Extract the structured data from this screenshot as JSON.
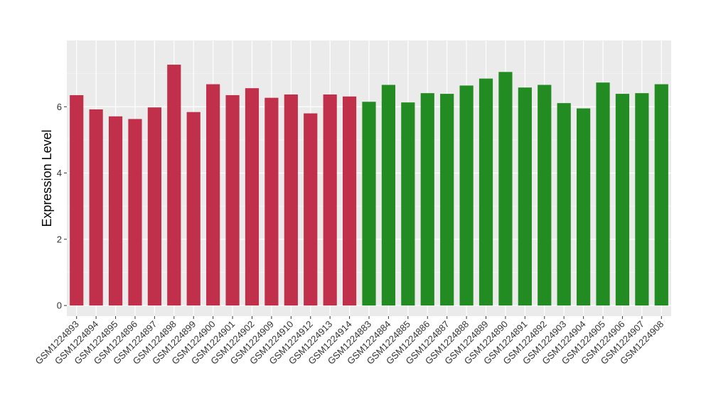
{
  "chart_data": {
    "type": "bar",
    "title": "",
    "xlabel": "",
    "ylabel": "Expression Level",
    "ylim": [
      -0.32,
      8.0
    ],
    "yticks": [
      0,
      2,
      4,
      6
    ],
    "grid": true,
    "legend": "none",
    "panel_background": "#ebebeb",
    "grid_color": "#ffffff",
    "categories": [
      "GSM1224893",
      "GSM1224894",
      "GSM1224895",
      "GSM1224896",
      "GSM1224897",
      "GSM1224898",
      "GSM1224899",
      "GSM1224900",
      "GSM1224901",
      "GSM1224902",
      "GSM1224909",
      "GSM1224910",
      "GSM1224912",
      "GSM1224913",
      "GSM1224914",
      "GSM1224883",
      "GSM1224884",
      "GSM1224885",
      "GSM1224886",
      "GSM1224887",
      "GSM1224888",
      "GSM1224889",
      "GSM1224890",
      "GSM1224891",
      "GSM1224892",
      "GSM1224903",
      "GSM1224904",
      "GSM1224905",
      "GSM1224906",
      "GSM1224907",
      "GSM1224908"
    ],
    "values": [
      6.35,
      5.92,
      5.71,
      5.63,
      5.98,
      7.27,
      5.84,
      6.68,
      6.35,
      6.56,
      6.27,
      6.37,
      5.8,
      6.37,
      6.31,
      6.15,
      6.66,
      6.13,
      6.41,
      6.39,
      6.64,
      6.85,
      7.05,
      6.58,
      6.66,
      6.11,
      5.95,
      6.73,
      6.39,
      6.41,
      6.68
    ],
    "bar_colors": [
      "#c0304a",
      "#c0304a",
      "#c0304a",
      "#c0304a",
      "#c0304a",
      "#c0304a",
      "#c0304a",
      "#c0304a",
      "#c0304a",
      "#c0304a",
      "#c0304a",
      "#c0304a",
      "#c0304a",
      "#c0304a",
      "#c0304a",
      "#228b22",
      "#228b22",
      "#228b22",
      "#228b22",
      "#228b22",
      "#228b22",
      "#228b22",
      "#228b22",
      "#228b22",
      "#228b22",
      "#228b22",
      "#228b22",
      "#228b22",
      "#228b22",
      "#228b22",
      "#228b22"
    ]
  }
}
